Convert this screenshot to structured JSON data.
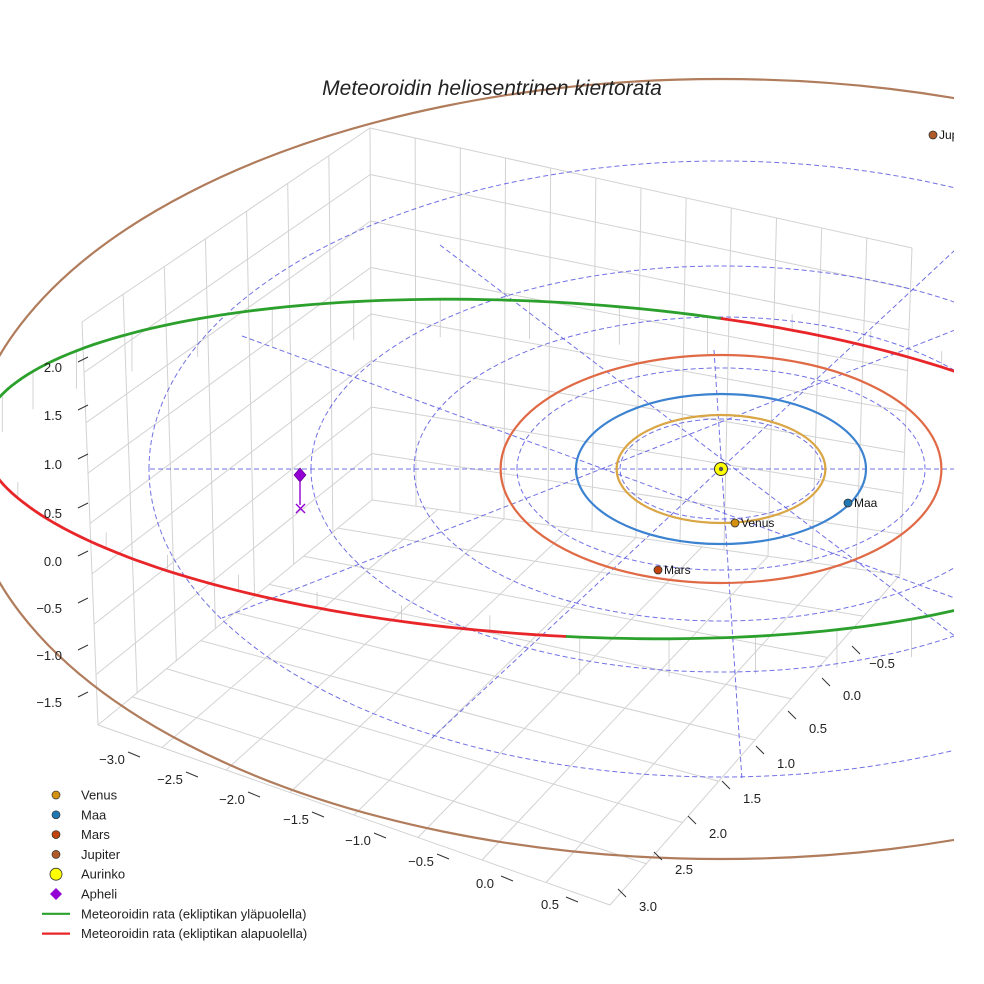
{
  "chart_data": {
    "type": "scatter3d",
    "title": "Meteoroidin heliosentrinen kiertorata",
    "axes": {
      "x_ticks": [
        "−3.0",
        "−2.5",
        "−2.0",
        "−1.5",
        "−1.0",
        "−0.5",
        "0.0",
        "0.5"
      ],
      "y_ticks": [
        "−0.5",
        "0.0",
        "0.5",
        "1.0",
        "1.5",
        "2.0",
        "2.5",
        "3.0"
      ],
      "z_ticks": [
        "2.0",
        "1.5",
        "1.0",
        "0.5",
        "0.0",
        "−0.5",
        "−1.0",
        "−1.5"
      ],
      "grid": true
    },
    "planets": [
      {
        "name": "Venus",
        "label": "Venus",
        "color": "#d4900f",
        "orbit_color": "#d9a545",
        "orbit_radius": 0.72
      },
      {
        "name": "Maa",
        "label": "Maa",
        "color": "#1f77b4",
        "orbit_color": "#3b82d0",
        "orbit_radius": 1.0
      },
      {
        "name": "Mars",
        "label": "Mars",
        "color": "#c1440e",
        "orbit_color": "#e06a46",
        "orbit_radius": 1.52
      },
      {
        "name": "Jupiter",
        "label": "Jupiter",
        "color": "#b05a2a",
        "orbit_color": "#b07c5c",
        "orbit_radius": 5.2
      }
    ],
    "sun": {
      "name": "Aurinko",
      "color": "#ffff00"
    },
    "aphelion": {
      "name": "Apheli",
      "color": "#9400d3"
    },
    "series": [
      {
        "name": "Meteoroidin rata (ekliptikan yläpuolella)",
        "color": "#2ca02c"
      },
      {
        "name": "Meteoroidin rata (ekliptikan alapuolella)",
        "color": "#e8262a"
      }
    ],
    "legend": {
      "position": "bottom-left",
      "entries": [
        {
          "label": "Venus",
          "symbol": "circle",
          "color": "#d4900f"
        },
        {
          "label": "Maa",
          "symbol": "circle",
          "color": "#1f77b4"
        },
        {
          "label": "Mars",
          "symbol": "circle",
          "color": "#c1440e"
        },
        {
          "label": "Jupiter",
          "symbol": "circle",
          "color": "#b05a2a"
        },
        {
          "label": "Aurinko",
          "symbol": "circle-large",
          "color": "#ffff00"
        },
        {
          "label": "Apheli",
          "symbol": "diamond",
          "color": "#9400d3"
        },
        {
          "label": "Meteoroidin rata (ekliptikan yläpuolella)",
          "symbol": "line",
          "color": "#2ca02c"
        },
        {
          "label": "Meteoroidin rata (ekliptikan alapuolella)",
          "symbol": "line",
          "color": "#e8262a"
        }
      ]
    }
  }
}
